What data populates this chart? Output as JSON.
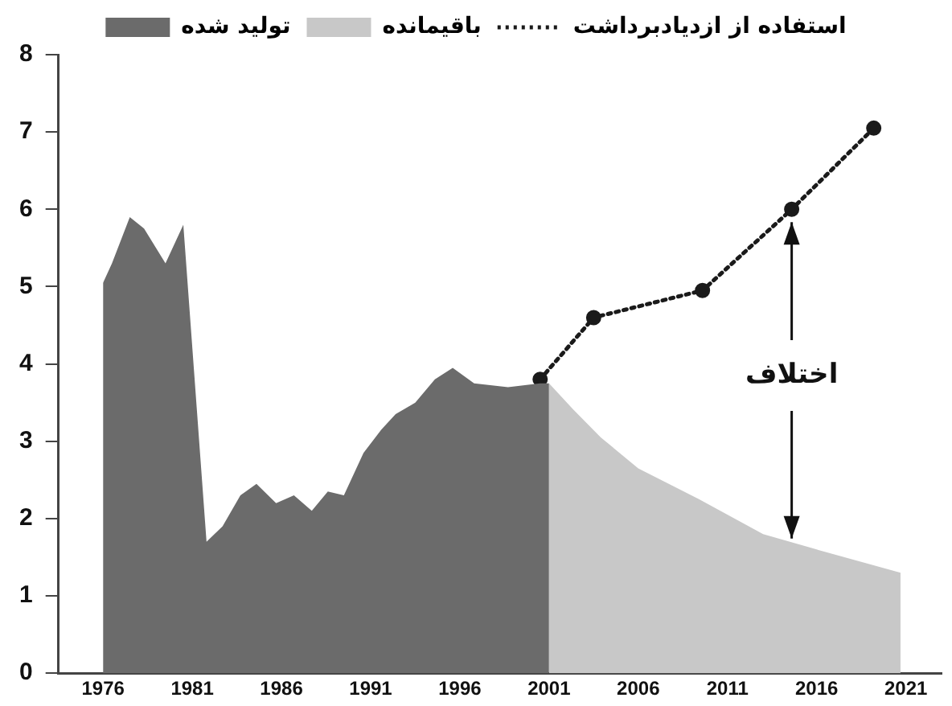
{
  "chart_data": {
    "type": "area",
    "legend": "top",
    "xlim": [
      1973.5,
      2023
    ],
    "xticks": [
      1976,
      1981,
      1986,
      1991,
      1996,
      2001,
      2006,
      2011,
      2016,
      2021
    ],
    "ylim": [
      0,
      8
    ],
    "yticks": [
      0,
      1,
      2,
      3,
      4,
      5,
      6,
      7,
      8
    ],
    "series": [
      {
        "name": "تولید شده",
        "color": "#6b6b6b",
        "x": [
          1976,
          1976.5,
          1977.5,
          1978.3,
          1979.5,
          1980.5,
          1981.8,
          1982.7,
          1983.7,
          1984.6,
          1985.7,
          1986.7,
          1987.7,
          1988.6,
          1989.5,
          1990.6,
          1991.6,
          1992.4,
          1993.5,
          1994.6,
          1995.6,
          1996.8,
          1998.7,
          2000.5,
          2001
        ],
        "values": [
          5.05,
          5.3,
          5.9,
          5.75,
          5.3,
          5.8,
          1.7,
          1.9,
          2.3,
          2.45,
          2.2,
          2.3,
          2.1,
          2.35,
          2.3,
          2.85,
          3.15,
          3.35,
          3.5,
          3.8,
          3.95,
          3.75,
          3.7,
          3.75,
          3.75
        ]
      },
      {
        "name": "باقیمانده",
        "color": "#c8c8c8",
        "x": [
          2001,
          2002.4,
          2003.9,
          2006,
          2009.4,
          2013,
          2016,
          2020.7
        ],
        "values": [
          3.75,
          3.4,
          3.05,
          2.65,
          2.25,
          1.8,
          1.6,
          1.3
        ]
      },
      {
        "name": "استفاده از ازدیادبرداشت",
        "type": "line",
        "line_style": "dotted",
        "marker": "circle",
        "color": "#1a1a1a",
        "x": [
          2000.5,
          2003.5,
          2009.6,
          2014.6,
          2019.2
        ],
        "values": [
          3.8,
          4.6,
          4.95,
          6.0,
          7.05
        ]
      }
    ],
    "annotations": [
      {
        "text": "اختلاف",
        "x": 2014.6,
        "y": 1.7
      }
    ]
  }
}
